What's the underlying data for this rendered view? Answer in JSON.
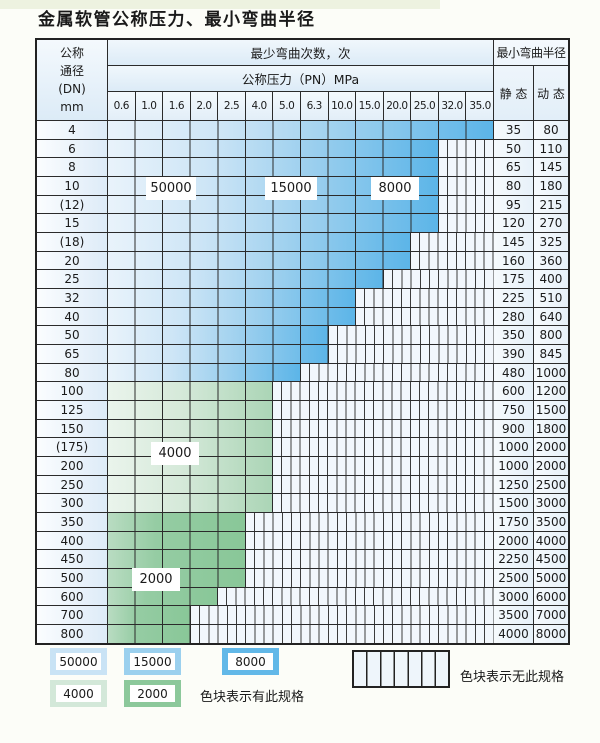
{
  "title": "金属软管公称压力、最小弯曲半径",
  "table": {
    "header": {
      "dn_lines": [
        "公称",
        "通径",
        "(DN)",
        "mm"
      ],
      "bend_cycles": "最少弯曲次数，次",
      "pressure": "公称压力（PN）MPa",
      "radius": "最小弯曲半径",
      "static_label": "静 态",
      "dynamic_label": "动 态",
      "pressure_values": [
        "0.6",
        "1.0",
        "1.6",
        "2.0",
        "2.5",
        "4.0",
        "5.0",
        "6.3",
        "10.0",
        "15.0",
        "20.0",
        "25.0",
        "32.0",
        "35.0"
      ]
    },
    "rows": [
      {
        "dn": "4",
        "max_pn": "35.0",
        "band": "blue",
        "static": "35",
        "dynamic": "80"
      },
      {
        "dn": "6",
        "max_pn": "25.0",
        "band": "blue",
        "static": "50",
        "dynamic": "110"
      },
      {
        "dn": "8",
        "max_pn": "25.0",
        "band": "blue",
        "static": "65",
        "dynamic": "145"
      },
      {
        "dn": "10",
        "max_pn": "25.0",
        "band": "blue",
        "static": "80",
        "dynamic": "180"
      },
      {
        "dn": "(12)",
        "max_pn": "25.0",
        "band": "blue",
        "static": "95",
        "dynamic": "215"
      },
      {
        "dn": "15",
        "max_pn": "25.0",
        "band": "blue",
        "static": "120",
        "dynamic": "270"
      },
      {
        "dn": "(18)",
        "max_pn": "20.0",
        "band": "blue",
        "static": "145",
        "dynamic": "325"
      },
      {
        "dn": "20",
        "max_pn": "20.0",
        "band": "blue",
        "static": "160",
        "dynamic": "360"
      },
      {
        "dn": "25",
        "max_pn": "15.0",
        "band": "blue",
        "static": "175",
        "dynamic": "400"
      },
      {
        "dn": "32",
        "max_pn": "10.0",
        "band": "blue",
        "static": "225",
        "dynamic": "510"
      },
      {
        "dn": "40",
        "max_pn": "10.0",
        "band": "blue",
        "static": "280",
        "dynamic": "640"
      },
      {
        "dn": "50",
        "max_pn": "6.3",
        "band": "blue",
        "static": "350",
        "dynamic": "800"
      },
      {
        "dn": "65",
        "max_pn": "6.3",
        "band": "blue",
        "static": "390",
        "dynamic": "845"
      },
      {
        "dn": "80",
        "max_pn": "5.0",
        "band": "blue",
        "static": "480",
        "dynamic": "1000"
      },
      {
        "dn": "100",
        "max_pn": "4.0",
        "band": "green_light",
        "static": "600",
        "dynamic": "1200"
      },
      {
        "dn": "125",
        "max_pn": "4.0",
        "band": "green_light",
        "static": "750",
        "dynamic": "1500"
      },
      {
        "dn": "150",
        "max_pn": "4.0",
        "band": "green_light",
        "static": "900",
        "dynamic": "1800"
      },
      {
        "dn": "(175)",
        "max_pn": "4.0",
        "band": "green_light",
        "static": "1000",
        "dynamic": "2000"
      },
      {
        "dn": "200",
        "max_pn": "4.0",
        "band": "green_light",
        "static": "1000",
        "dynamic": "2000"
      },
      {
        "dn": "250",
        "max_pn": "4.0",
        "band": "green_light",
        "static": "1250",
        "dynamic": "2500"
      },
      {
        "dn": "300",
        "max_pn": "4.0",
        "band": "green_light",
        "static": "1500",
        "dynamic": "3000"
      },
      {
        "dn": "350",
        "max_pn": "2.5",
        "band": "green_dark",
        "static": "1750",
        "dynamic": "3500"
      },
      {
        "dn": "400",
        "max_pn": "2.5",
        "band": "green_dark",
        "static": "2000",
        "dynamic": "4000"
      },
      {
        "dn": "450",
        "max_pn": "2.5",
        "band": "green_dark",
        "static": "2250",
        "dynamic": "4500"
      },
      {
        "dn": "500",
        "max_pn": "2.5",
        "band": "green_dark",
        "static": "2500",
        "dynamic": "5000"
      },
      {
        "dn": "600",
        "max_pn": "2.0",
        "band": "green_dark",
        "static": "3000",
        "dynamic": "6000"
      },
      {
        "dn": "700",
        "max_pn": "1.6",
        "band": "green_dark",
        "static": "3500",
        "dynamic": "7000"
      },
      {
        "dn": "800",
        "max_pn": "1.6",
        "band": "green_dark",
        "static": "4000",
        "dynamic": "8000"
      }
    ]
  },
  "overlay_labels": {
    "l50000": "50000",
    "l15000": "15000",
    "l8000": "8000",
    "l4000": "4000",
    "l2000": "2000"
  },
  "legend": {
    "items": [
      {
        "label": "50000",
        "color": "#c9e3f5"
      },
      {
        "label": "15000",
        "color": "#9bd0ee"
      },
      {
        "label": "8000",
        "color": "#62b8e8"
      },
      {
        "label": "4000",
        "color": "#d3e8d9"
      },
      {
        "label": "2000",
        "color": "#8cc89b"
      }
    ],
    "has_spec": "色块表示有此规格",
    "no_spec": "色块表示无此规格"
  },
  "colors": {
    "blue_band_light": "#e9f3fb",
    "blue_band_dark": "#5cb5e8",
    "green_band_light": "#d5e9d9",
    "green_band_dark": "#89c798",
    "hatch_bg": "#f2f7fc",
    "grid_line": "#2b2b2b"
  }
}
